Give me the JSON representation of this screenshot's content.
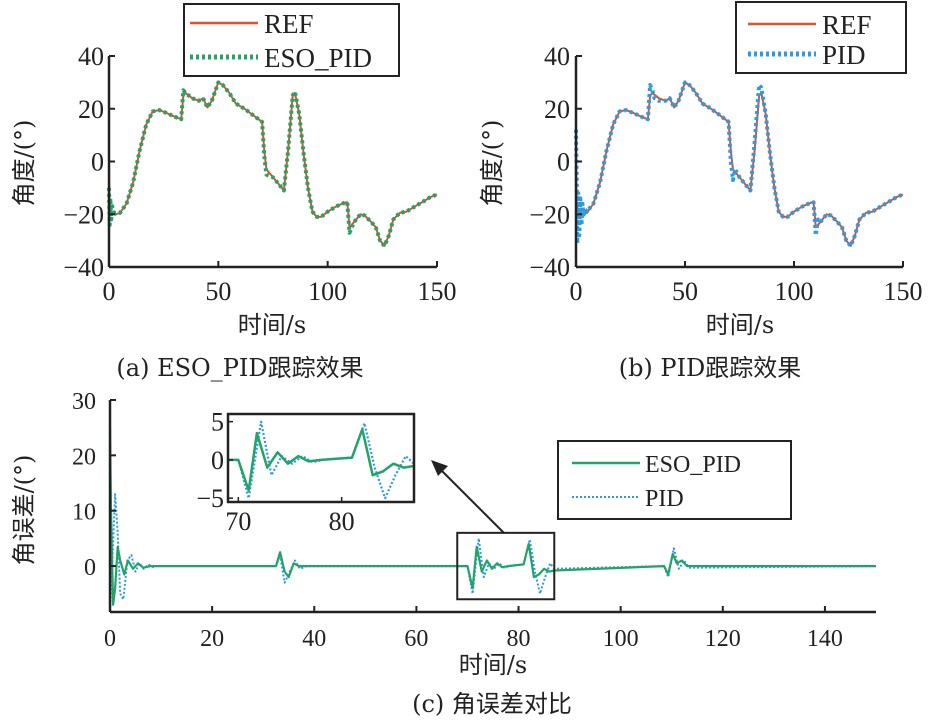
{
  "colors": {
    "ref": "#e0502a",
    "eso_pid": "#23a36a",
    "pid": "#2e9ae0",
    "axis": "#222222"
  },
  "chart_data": [
    {
      "id": "a",
      "type": "line",
      "caption": "(a) ESO_PID跟踪效果",
      "xlabel": "时间/s",
      "ylabel": "角度/(°)",
      "xlim": [
        0,
        150
      ],
      "ylim": [
        -40,
        40
      ],
      "xticks": [
        0,
        50,
        100,
        150
      ],
      "yticks": [
        -40,
        -20,
        0,
        20,
        40
      ],
      "xtick_labels": [
        "0",
        "50",
        "100",
        "150"
      ],
      "ytick_labels": [
        "−40",
        "−20",
        "0",
        "20",
        "40"
      ],
      "legend": {
        "position": "top-right",
        "entries": [
          "REF",
          "ESO_PID"
        ]
      },
      "grid": false,
      "series": [
        {
          "name": "REF",
          "style": "solid",
          "color": "#e0502a",
          "x": [
            0,
            0.2,
            1,
            3,
            5,
            8,
            11,
            14,
            17,
            20,
            23,
            26,
            30,
            33,
            34,
            35,
            38,
            41,
            43,
            45,
            47,
            50,
            52,
            55,
            58,
            62,
            66,
            70,
            71,
            72,
            75,
            78,
            80,
            82,
            84,
            85,
            87,
            89,
            91,
            93,
            95,
            97,
            100,
            104,
            108,
            109,
            110,
            112,
            115,
            117,
            120,
            122,
            124,
            126,
            128,
            130,
            133,
            136,
            140,
            144,
            147,
            150
          ],
          "y": [
            0,
            -15,
            -19,
            -20,
            -19.5,
            -16,
            -8,
            4,
            14,
            19,
            19.5,
            18.5,
            17,
            16,
            25,
            26,
            24,
            23,
            24,
            20.5,
            23,
            30,
            29,
            26,
            22,
            20,
            17.5,
            15,
            4,
            -3,
            -6,
            -9,
            -11,
            5,
            25,
            26,
            18,
            3,
            -10,
            -19,
            -21,
            -21,
            -19,
            -17,
            -15.5,
            -15.5,
            -25,
            -23,
            -20,
            -20.5,
            -23,
            -25,
            -30,
            -32,
            -28,
            -22,
            -19.5,
            -19,
            -17,
            -15,
            -13.5,
            -12.5
          ]
        },
        {
          "name": "ESO_PID",
          "style": "dotted",
          "color": "#23a36a",
          "x": [
            0,
            0.3,
            0.6,
            1,
            1.5,
            2,
            3,
            5,
            8,
            11,
            14,
            17,
            20,
            23,
            26,
            30,
            33,
            34,
            35,
            38,
            41,
            43,
            45,
            47,
            50,
            52,
            55,
            58,
            62,
            66,
            70,
            71,
            72,
            75,
            78,
            80,
            82,
            84,
            85,
            87,
            89,
            91,
            93,
            95,
            97,
            100,
            104,
            108,
            109,
            110,
            112,
            115,
            117,
            120,
            122,
            124,
            126,
            128,
            130,
            133,
            136,
            140,
            144,
            147,
            150
          ],
          "y": [
            -10,
            -24,
            -14,
            -22,
            -17,
            -20.5,
            -19.5,
            -19.5,
            -16,
            -8,
            4,
            14,
            19,
            19.5,
            18.5,
            17,
            16,
            27,
            26,
            24,
            23,
            24,
            20.5,
            23,
            30,
            29,
            26,
            22,
            20,
            17.5,
            15,
            2,
            -5,
            -6,
            -9,
            -11,
            5,
            25,
            26.5,
            18,
            3,
            -10,
            -19,
            -21,
            -21,
            -19,
            -17,
            -15.5,
            -15.5,
            -27,
            -23,
            -20,
            -20.5,
            -23,
            -25,
            -30,
            -32,
            -28,
            -22,
            -19.5,
            -19,
            -17,
            -15,
            -13.5,
            -12.5
          ]
        }
      ]
    },
    {
      "id": "b",
      "type": "line",
      "caption": "(b) PID跟踪效果",
      "xlabel": "时间/s",
      "ylabel": "角度/(°)",
      "xlim": [
        0,
        150
      ],
      "ylim": [
        -40,
        40
      ],
      "xticks": [
        0,
        50,
        100,
        150
      ],
      "yticks": [
        -40,
        -20,
        0,
        20,
        40
      ],
      "xtick_labels": [
        "0",
        "50",
        "100",
        "150"
      ],
      "ytick_labels": [
        "−40",
        "−20",
        "0",
        "20",
        "40"
      ],
      "legend": {
        "position": "top-right",
        "entries": [
          "REF",
          "PID"
        ]
      },
      "grid": false,
      "series": [
        {
          "name": "REF",
          "style": "solid",
          "color": "#e0502a",
          "x": [
            0,
            0.2,
            1,
            3,
            5,
            8,
            11,
            14,
            17,
            20,
            23,
            26,
            30,
            33,
            34,
            35,
            38,
            41,
            43,
            45,
            47,
            50,
            52,
            55,
            58,
            62,
            66,
            70,
            71,
            72,
            75,
            78,
            80,
            82,
            84,
            85,
            87,
            89,
            91,
            93,
            95,
            97,
            100,
            104,
            108,
            109,
            110,
            112,
            115,
            117,
            120,
            122,
            124,
            126,
            128,
            130,
            133,
            136,
            140,
            144,
            147,
            150
          ],
          "y": [
            0,
            -15,
            -19,
            -20,
            -19.5,
            -16,
            -8,
            4,
            14,
            19,
            19.5,
            18.5,
            17,
            16,
            25,
            26,
            24,
            23,
            24,
            20.5,
            23,
            30,
            29,
            26,
            22,
            20,
            17.5,
            15,
            4,
            -3,
            -6,
            -9,
            -11,
            5,
            25,
            26,
            18,
            3,
            -10,
            -19,
            -21,
            -21,
            -19,
            -17,
            -15.5,
            -15.5,
            -25,
            -23,
            -20,
            -20.5,
            -23,
            -25,
            -30,
            -32,
            -28,
            -22,
            -19.5,
            -19,
            -17,
            -15,
            -13.5,
            -12.5
          ]
        },
        {
          "name": "PID",
          "style": "dotted",
          "color": "#2e9ae0",
          "x": [
            0,
            0.3,
            0.6,
            1,
            1.5,
            2,
            2.5,
            3,
            3.5,
            4,
            5,
            8,
            11,
            14,
            17,
            20,
            23,
            26,
            30,
            33,
            34,
            35,
            36,
            38,
            41,
            43,
            45,
            47,
            50,
            52,
            55,
            58,
            62,
            66,
            70,
            71,
            72,
            73,
            75,
            78,
            80,
            82,
            84,
            85,
            87,
            89,
            91,
            93,
            95,
            97,
            100,
            104,
            108,
            109,
            110,
            111,
            112,
            115,
            117,
            120,
            122,
            124,
            126,
            128,
            130,
            133,
            136,
            140,
            144,
            147,
            150
          ],
          "y": [
            12,
            -5,
            -31,
            -12,
            -28,
            -14,
            -24,
            -16,
            -21,
            -18,
            -19,
            -16,
            -8,
            4,
            14,
            19,
            19.5,
            18.5,
            17,
            16,
            29,
            27,
            24,
            23,
            23,
            24,
            20.5,
            23,
            30,
            29,
            26,
            22,
            20,
            17.5,
            15,
            0,
            -7,
            -3,
            -6,
            -9,
            -11,
            8,
            29,
            28,
            18,
            3,
            -10,
            -19,
            -21,
            -21,
            -19,
            -17,
            -15.5,
            -15.5,
            -28,
            -22,
            -23,
            -20,
            -20.5,
            -23,
            -25,
            -30,
            -32,
            -28,
            -22,
            -19.5,
            -19,
            -17,
            -15,
            -13.5,
            -12.5
          ]
        }
      ]
    },
    {
      "id": "c",
      "type": "line",
      "caption": "(c) 角误差对比",
      "xlabel": "时间/s",
      "ylabel": "角误差/(°)",
      "xlim": [
        0,
        150
      ],
      "ylim": [
        -8.3,
        30
      ],
      "xticks": [
        0,
        20,
        40,
        60,
        80,
        100,
        120,
        140
      ],
      "yticks": [
        0,
        10,
        20,
        30
      ],
      "xtick_labels": [
        "0",
        "20",
        "40",
        "60",
        "80",
        "100",
        "120",
        "140"
      ],
      "ytick_labels": [
        "0",
        "10",
        "20",
        "30"
      ],
      "legend": {
        "position": "right",
        "entries": [
          "ESO_PID",
          "PID"
        ]
      },
      "grid": false,
      "series": [
        {
          "name": "ESO_PID",
          "style": "solid",
          "color": "#23a36a",
          "x": [
            0,
            0.2,
            0.6,
            1,
            1.5,
            2,
            2.8,
            3.5,
            4.5,
            5.5,
            6.5,
            8,
            32.5,
            33.3,
            34.2,
            35,
            36,
            37,
            38,
            70,
            71,
            71.8,
            72.8,
            73.8,
            74.8,
            75.8,
            76.8,
            78,
            81,
            82,
            83,
            84,
            85,
            86,
            87,
            108.5,
            109.3,
            110.2,
            111,
            112,
            113,
            114,
            150
          ],
          "y": [
            25,
            10,
            -7,
            -4,
            3.5,
            1,
            -1.5,
            1,
            -0.5,
            0.5,
            -0.3,
            0,
            0,
            2.5,
            -1,
            -2,
            0.5,
            0,
            0,
            0,
            -4,
            3.5,
            -1,
            1,
            -0.5,
            0.5,
            -0.2,
            0,
            0.3,
            4,
            -2,
            -1.5,
            -0.5,
            -1,
            -0.8,
            0,
            -1.5,
            2.2,
            0.5,
            1,
            0,
            0,
            0
          ]
        },
        {
          "name": "PID",
          "style": "dotted",
          "color": "#2e9ae0",
          "x": [
            0,
            0.5,
            1,
            1.5,
            2,
            2.6,
            3.4,
            4.2,
            5,
            5.8,
            6.6,
            7.5,
            8.5,
            9,
            32.5,
            33.3,
            34.2,
            35.2,
            36.2,
            37.2,
            38.5,
            70,
            71,
            72.2,
            73.2,
            74.2,
            75.2,
            76.2,
            77.2,
            78.2,
            81,
            82.2,
            83.2,
            84.2,
            85.2,
            86.2,
            87,
            108.5,
            109.3,
            110.4,
            111.4,
            112.4,
            113.4,
            150
          ],
          "y": [
            -8,
            2,
            13,
            6,
            -5,
            -6,
            1,
            2,
            -1,
            0.5,
            -0.5,
            0.3,
            -0.2,
            0,
            0,
            2,
            -3,
            -1,
            1,
            -0.5,
            0,
            0,
            -5,
            5,
            -2,
            0.5,
            -0.5,
            0.5,
            -0.3,
            0,
            0.3,
            4.8,
            -1,
            -5,
            -2,
            0.5,
            -0.5,
            0,
            -2,
            3.2,
            -0.5,
            1,
            -0.3,
            0
          ]
        }
      ],
      "inset": {
        "xlim": [
          69,
          87
        ],
        "ylim": [
          -5.5,
          6
        ],
        "xticks": [
          70,
          80
        ],
        "yticks": [
          -5,
          0,
          5
        ],
        "xtick_labels": [
          "70",
          "80"
        ],
        "ytick_labels": [
          "−5",
          "0",
          "5"
        ],
        "zoom_region": {
          "x": [
            68,
            87
          ],
          "y": [
            -6,
            6
          ]
        },
        "annotation": "arrow from zoom region to inset"
      }
    }
  ]
}
